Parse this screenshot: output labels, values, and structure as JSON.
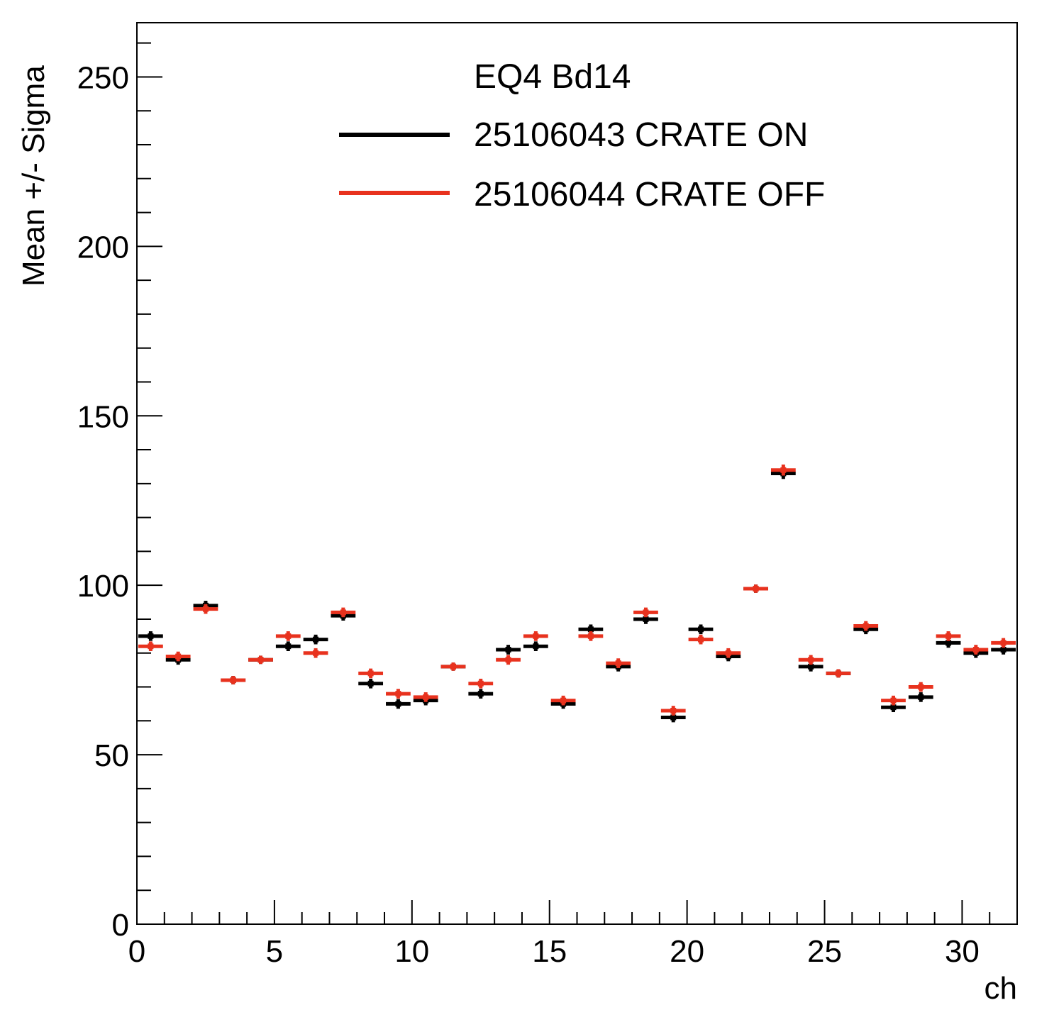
{
  "chart_data": {
    "type": "scatter",
    "title": "",
    "xlabel": "ch",
    "ylabel": "Mean +/- Sigma",
    "xlim": [
      0,
      32
    ],
    "ylim": [
      0,
      266
    ],
    "x_major_ticks": [
      0,
      5,
      10,
      15,
      20,
      25,
      30
    ],
    "y_major_ticks": [
      0,
      50,
      100,
      150,
      200,
      250
    ],
    "x_minor_step": 1,
    "y_minor_step": 10,
    "grid": false,
    "legend": {
      "placement": "top-center",
      "header": "EQ4 Bd14",
      "entries": [
        {
          "label": "25106043 CRATE ON",
          "color": "#000000"
        },
        {
          "label": "25106044 CRATE OFF",
          "color": "#e8321e"
        }
      ]
    },
    "x": [
      0.5,
      1.5,
      2.5,
      3.5,
      4.5,
      5.5,
      6.5,
      7.5,
      8.5,
      9.5,
      10.5,
      11.5,
      12.5,
      13.5,
      14.5,
      15.5,
      16.5,
      17.5,
      18.5,
      19.5,
      20.5,
      21.5,
      22.5,
      23.5,
      24.5,
      25.5,
      26.5,
      27.5,
      28.5,
      29.5,
      30.5,
      31.5
    ],
    "series": [
      {
        "name": "25106043 CRATE ON",
        "color": "#000000",
        "values": [
          85,
          78,
          94,
          72,
          78,
          82,
          84,
          91,
          71,
          65,
          66,
          76,
          68,
          81,
          82,
          65,
          87,
          76,
          90,
          61,
          87,
          79,
          99,
          133,
          76,
          74,
          87,
          64,
          67,
          83,
          80,
          81
        ],
        "errors": [
          0.8,
          0.8,
          0.8,
          0.6,
          0.6,
          0.8,
          0.8,
          0.8,
          0.8,
          0.8,
          0.8,
          0.6,
          0.8,
          0.8,
          0.8,
          0.8,
          0.8,
          0.8,
          0.8,
          0.8,
          0.8,
          0.8,
          0.6,
          1.0,
          0.8,
          0.6,
          0.8,
          0.8,
          0.8,
          0.8,
          0.8,
          0.8
        ]
      },
      {
        "name": "25106044 CRATE OFF",
        "color": "#e8321e",
        "values": [
          82,
          79,
          93,
          72,
          78,
          85,
          80,
          92,
          74,
          68,
          67,
          76,
          71,
          78,
          85,
          66,
          85,
          77,
          92,
          63,
          84,
          80,
          99,
          134,
          78,
          74,
          88,
          66,
          70,
          85,
          81,
          83
        ],
        "errors": [
          0.8,
          0.8,
          0.8,
          0.6,
          0.6,
          0.8,
          0.8,
          0.8,
          0.8,
          0.8,
          0.8,
          0.6,
          0.8,
          0.8,
          0.8,
          0.8,
          0.8,
          0.8,
          0.8,
          0.8,
          0.8,
          0.8,
          0.6,
          1.0,
          0.8,
          0.6,
          0.8,
          0.8,
          0.8,
          0.8,
          0.8,
          0.8
        ]
      }
    ]
  }
}
